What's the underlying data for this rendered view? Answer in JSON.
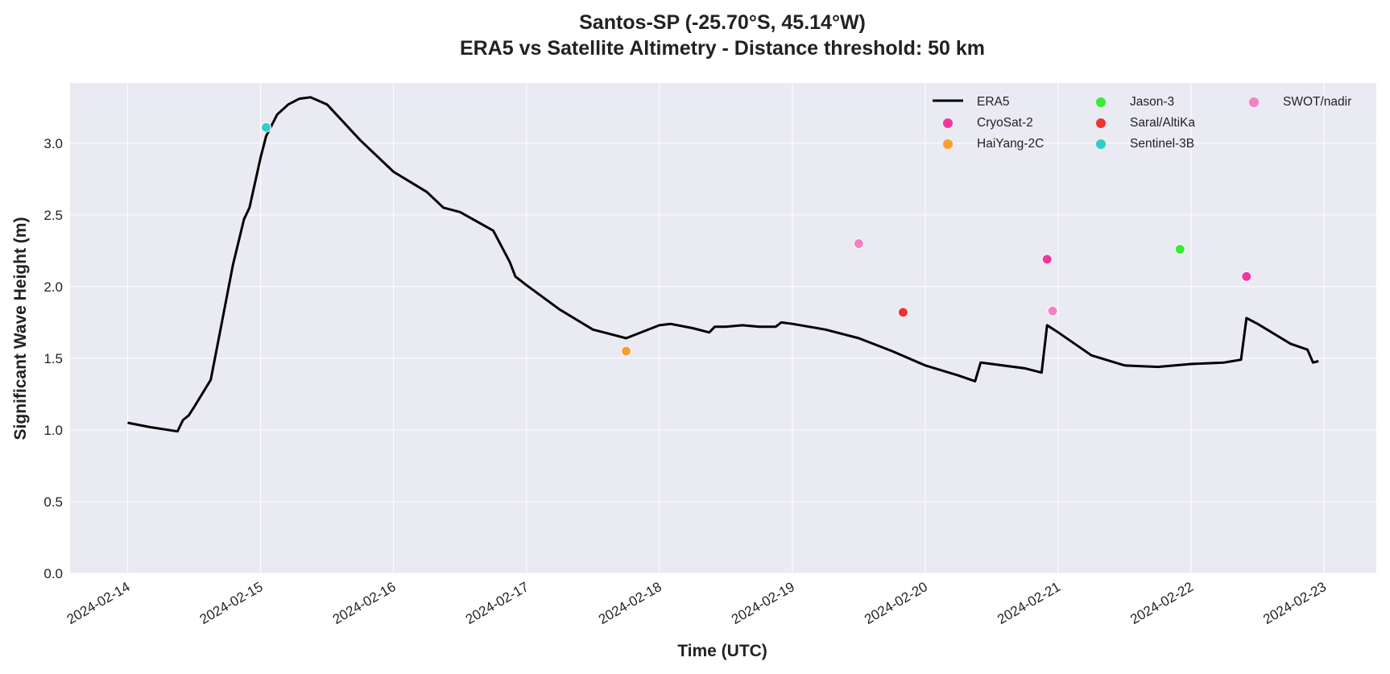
{
  "chart_data": {
    "type": "line",
    "title": "Santos-SP (-25.70°S, 45.14°W)",
    "subtitle": "ERA5 vs Satellite Altimetry - Distance threshold: 50 km",
    "xlabel": "Time (UTC)",
    "ylabel": "Significant Wave Height (m)",
    "xlim": [
      "2024-02-13T13:36Z",
      "2024-02-23T09:26Z"
    ],
    "xticks": [
      "2024-02-14",
      "2024-02-15",
      "2024-02-16",
      "2024-02-17",
      "2024-02-18",
      "2024-02-19",
      "2024-02-20",
      "2024-02-21",
      "2024-02-22",
      "2024-02-23"
    ],
    "ylim": [
      0,
      3.42
    ],
    "yticks": [
      {
        "value": 0,
        "label": "0.0"
      },
      0.5,
      {
        "value": 1,
        "label": "1.0"
      },
      1.5,
      {
        "value": 2,
        "label": "2.0"
      },
      2.5,
      {
        "value": 3,
        "label": "3.0"
      }
    ],
    "grid": true,
    "legend": "upper right",
    "series": [
      {
        "name": "ERA5",
        "type": "line",
        "color": "#000000",
        "x": [
          "2024-02-14T00:00Z",
          "2024-02-14T04:00Z",
          "2024-02-14T09:00Z",
          "2024-02-14T10:00Z",
          "2024-02-14T11:00Z",
          "2024-02-14T12:00Z",
          "2024-02-14T15:00Z",
          "2024-02-14T16:00Z",
          "2024-02-14T17:00Z",
          "2024-02-14T19:00Z",
          "2024-02-14T21:00Z",
          "2024-02-14T22:00Z",
          "2024-02-15T00:00Z",
          "2024-02-15T01:00Z",
          "2024-02-15T03:00Z",
          "2024-02-15T05:00Z",
          "2024-02-15T07:00Z",
          "2024-02-15T09:00Z",
          "2024-02-15T12:00Z",
          "2024-02-15T18:00Z",
          "2024-02-16T00:00Z",
          "2024-02-16T06:00Z",
          "2024-02-16T09:00Z",
          "2024-02-16T10:00Z",
          "2024-02-16T12:00Z",
          "2024-02-16T18:00Z",
          "2024-02-16T21:00Z",
          "2024-02-16T22:00Z",
          "2024-02-17T00:00Z",
          "2024-02-17T06:00Z",
          "2024-02-17T12:00Z",
          "2024-02-17T18:00Z",
          "2024-02-18T00:00Z",
          "2024-02-18T02:00Z",
          "2024-02-18T06:00Z",
          "2024-02-18T09:00Z",
          "2024-02-18T10:00Z",
          "2024-02-18T12:00Z",
          "2024-02-18T15:00Z",
          "2024-02-18T18:00Z",
          "2024-02-18T21:00Z",
          "2024-02-18T22:00Z",
          "2024-02-19T00:00Z",
          "2024-02-19T06:00Z",
          "2024-02-19T12:00Z",
          "2024-02-19T18:00Z",
          "2024-02-20T00:00Z",
          "2024-02-20T06:00Z",
          "2024-02-20T09:00Z",
          "2024-02-20T10:00Z",
          "2024-02-20T12:00Z",
          "2024-02-20T18:00Z",
          "2024-02-20T21:00Z",
          "2024-02-20T22:00Z",
          "2024-02-21T00:00Z",
          "2024-02-21T06:00Z",
          "2024-02-21T12:00Z",
          "2024-02-21T18:00Z",
          "2024-02-22T00:00Z",
          "2024-02-22T06:00Z",
          "2024-02-22T09:00Z",
          "2024-02-22T10:00Z",
          "2024-02-22T12:00Z",
          "2024-02-22T18:00Z",
          "2024-02-22T21:00Z",
          "2024-02-22T22:00Z",
          "2024-02-22T23:00Z"
        ],
        "values": [
          1.05,
          1.02,
          0.99,
          1.07,
          1.1,
          1.16,
          1.35,
          1.55,
          1.75,
          2.15,
          2.47,
          2.55,
          2.9,
          3.05,
          3.2,
          3.27,
          3.31,
          3.32,
          3.27,
          3.02,
          2.8,
          2.66,
          2.55,
          2.54,
          2.52,
          2.39,
          2.17,
          2.07,
          2.01,
          1.84,
          1.7,
          1.64,
          1.73,
          1.74,
          1.71,
          1.68,
          1.72,
          1.72,
          1.73,
          1.72,
          1.72,
          1.75,
          1.74,
          1.7,
          1.64,
          1.55,
          1.45,
          1.38,
          1.34,
          1.47,
          1.46,
          1.43,
          1.4,
          1.73,
          1.68,
          1.52,
          1.45,
          1.44,
          1.46,
          1.47,
          1.49,
          1.78,
          1.74,
          1.6,
          1.56,
          1.47,
          1.48
        ]
      },
      {
        "name": "CryoSat-2",
        "type": "scatter",
        "color": "#f0379f",
        "x": [
          "2024-02-20T22:00Z",
          "2024-02-22T10:00Z"
        ],
        "values": [
          2.19,
          2.07
        ]
      },
      {
        "name": "HaiYang-2C",
        "type": "scatter",
        "color": "#f7a030",
        "x": [
          "2024-02-17T18:00Z"
        ],
        "values": [
          1.55
        ]
      },
      {
        "name": "Jason-3",
        "type": "scatter",
        "color": "#33ee33",
        "x": [
          "2024-02-21T22:00Z"
        ],
        "values": [
          2.26
        ]
      },
      {
        "name": "Saral/AltiKa",
        "type": "scatter",
        "color": "#ee3333",
        "x": [
          "2024-02-19T20:00Z"
        ],
        "values": [
          1.82
        ]
      },
      {
        "name": "Sentinel-3B",
        "type": "scatter",
        "color": "#33cccc",
        "x": [
          "2024-02-15T01:00Z"
        ],
        "values": [
          3.11
        ]
      },
      {
        "name": "SWOT/nadir",
        "type": "scatter",
        "color": "#f582c0",
        "x": [
          "2024-02-19T12:00Z",
          "2024-02-20T23:00Z"
        ],
        "values": [
          2.3,
          1.83
        ]
      }
    ]
  }
}
